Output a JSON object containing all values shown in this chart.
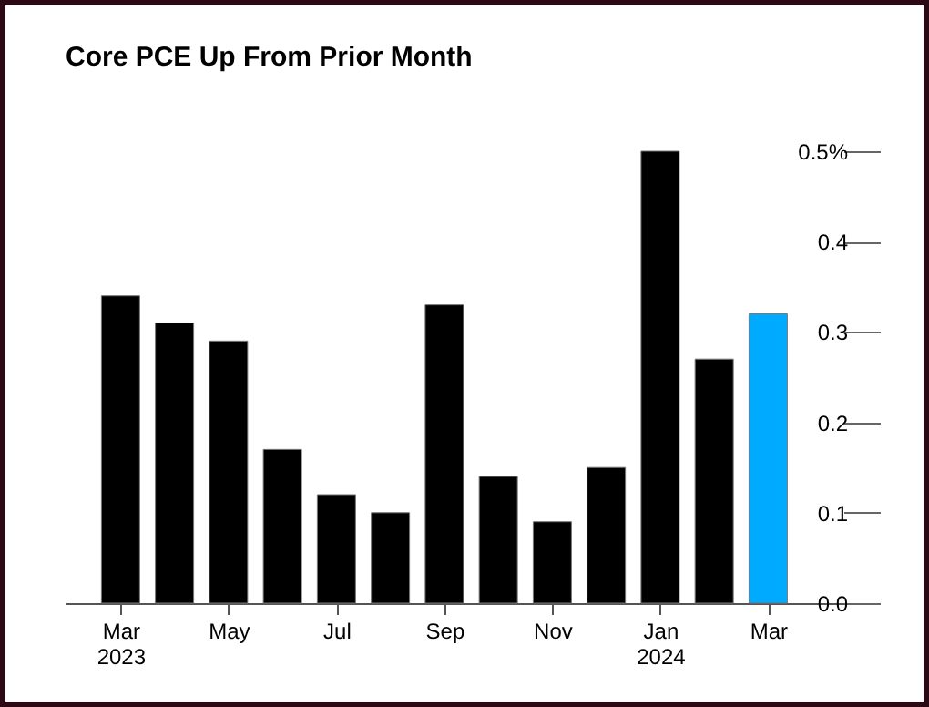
{
  "chart_data": {
    "type": "bar",
    "title": "Core PCE Up From Prior Month",
    "categories": [
      "Mar\n2023",
      null,
      "May",
      null,
      "Jul",
      null,
      "Sep",
      null,
      "Nov",
      null,
      "Jan\n2024",
      null,
      "Mar"
    ],
    "values": [
      0.34,
      0.31,
      0.29,
      0.17,
      0.12,
      0.1,
      0.33,
      0.14,
      0.09,
      0.15,
      0.5,
      0.27,
      0.32
    ],
    "colors": [
      "#000000",
      "#000000",
      "#000000",
      "#000000",
      "#000000",
      "#000000",
      "#000000",
      "#000000",
      "#000000",
      "#000000",
      "#000000",
      "#000000",
      "#00aaff"
    ],
    "ylim": [
      0,
      0.5
    ],
    "yticks": [
      {
        "value": 0,
        "label": "0.0"
      },
      {
        "value": 0.1,
        "label": "0.1"
      },
      {
        "value": 0.2,
        "label": "0.2"
      },
      {
        "value": 0.3,
        "label": "0.3"
      },
      {
        "value": 0.4,
        "label": "0.4"
      },
      {
        "value": 0.5,
        "label": "0.5%"
      }
    ]
  }
}
